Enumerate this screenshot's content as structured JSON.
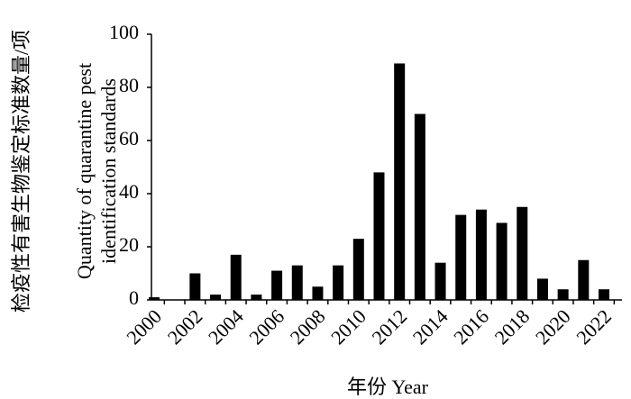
{
  "chart_data": {
    "type": "bar",
    "ylabel": {
      "zh": "检疫性有害生物鉴定标准数量/项",
      "en": [
        "Quantity of quarantine pest",
        "identification standards"
      ]
    },
    "xlabel": "年份 Year",
    "categories": [
      "2000",
      null,
      "2002",
      null,
      "2004",
      null,
      "2006",
      null,
      "2008",
      null,
      "2010",
      null,
      "2012",
      null,
      "2014",
      null,
      "2016",
      null,
      "2018",
      null,
      "2020",
      null,
      "2022"
    ],
    "values": [
      1,
      0,
      10,
      2,
      17,
      2,
      11,
      13,
      5,
      13,
      23,
      48,
      89,
      70,
      14,
      32,
      34,
      29,
      35,
      8,
      4,
      15,
      4
    ],
    "color": "#000000",
    "ylim": [
      0,
      100
    ],
    "yticks": [
      0,
      20,
      40,
      60,
      80,
      100
    ],
    "grid": false
  }
}
